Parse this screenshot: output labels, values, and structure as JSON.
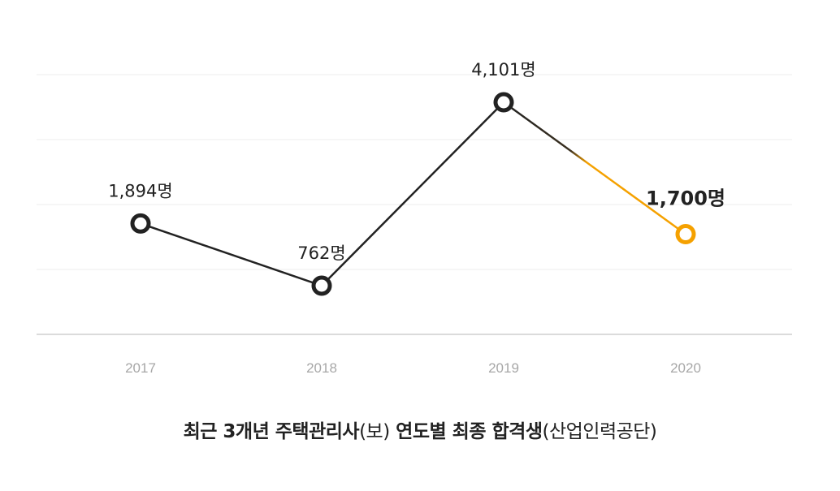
{
  "chart_data": {
    "type": "line",
    "categories": [
      "2017",
      "2018",
      "2019",
      "2020"
    ],
    "values": [
      1894,
      762,
      4101,
      1700
    ],
    "data_labels": [
      "1,894명",
      "762명",
      "4,101명",
      "1,700명"
    ],
    "highlight_index": 3,
    "title": "",
    "xlabel": "",
    "ylabel": "",
    "grid": true,
    "colors": {
      "line": "#222222",
      "highlight": "#f5a100",
      "grid": "#ededed",
      "tick_label": "#a7a7a7"
    }
  },
  "caption": {
    "part1": "최근 3개년 주택관리사",
    "part2": "(보)",
    "part3": " 연도별 최종 합격생",
    "part4": "(산업인력공단)"
  }
}
